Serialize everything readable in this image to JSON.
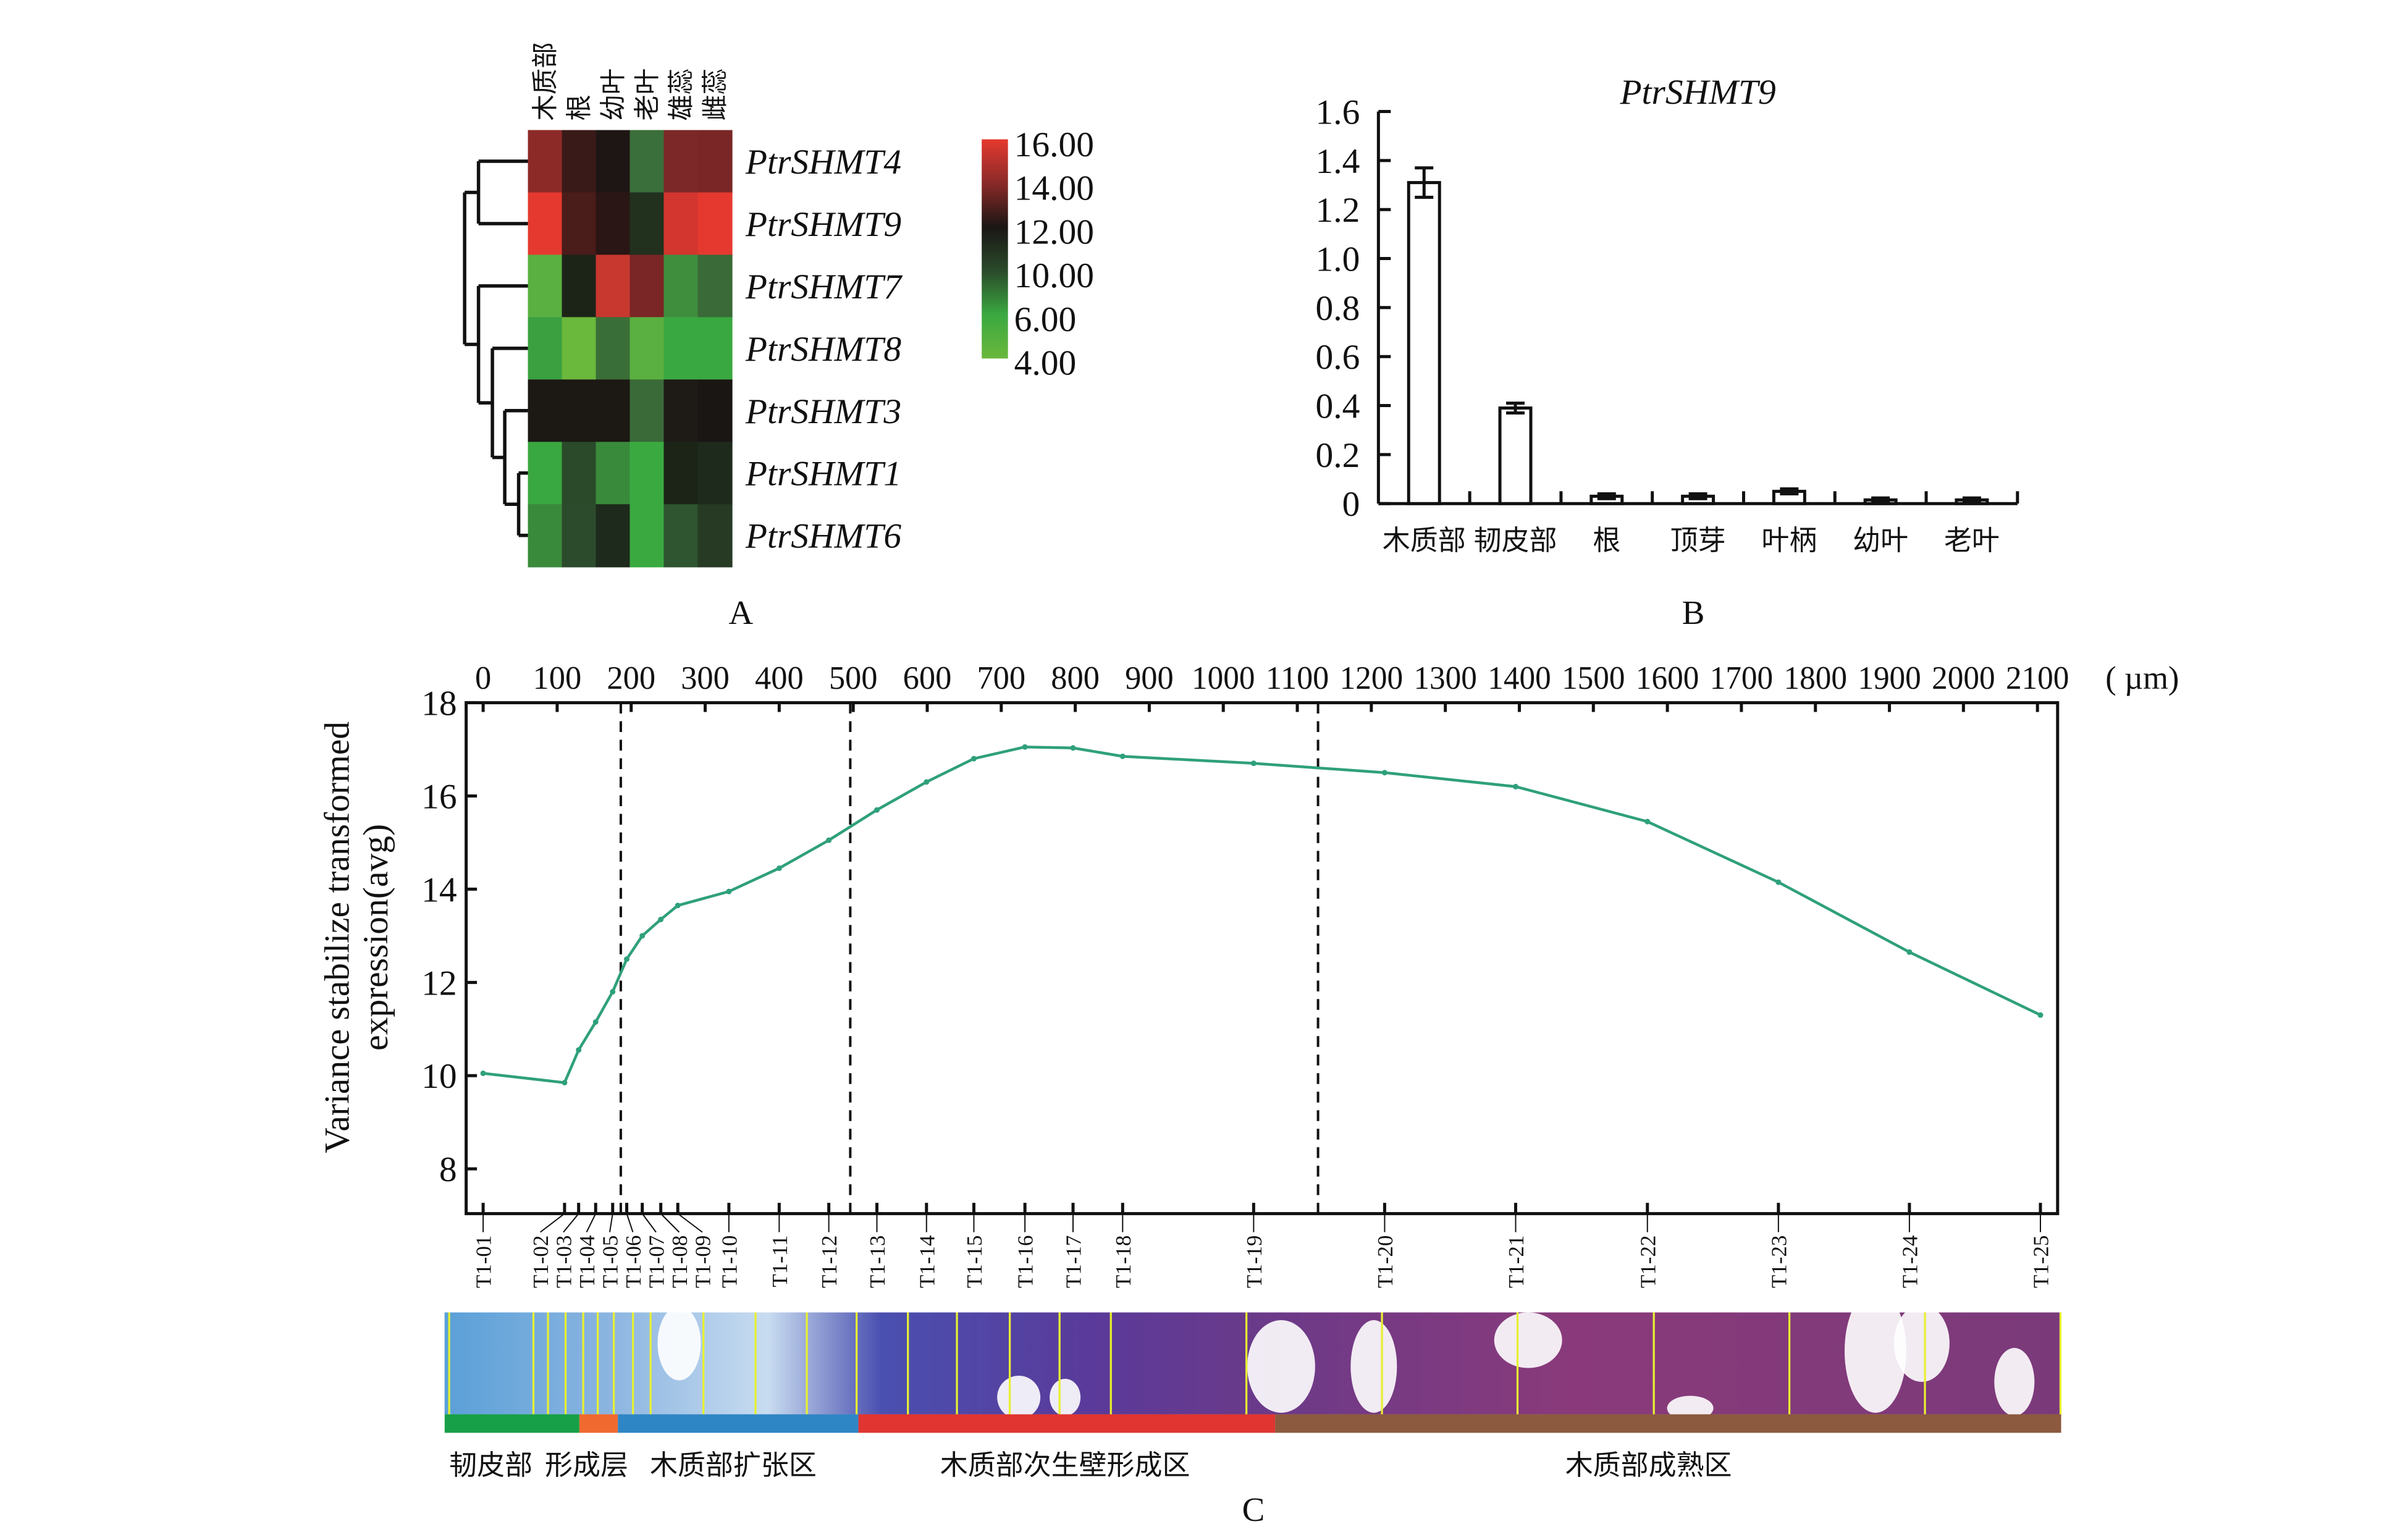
{
  "panel_labels": {
    "a": "A",
    "b": "B",
    "c": "C"
  },
  "chart_data": [
    {
      "type": "heatmap",
      "panel": "A",
      "columns": [
        "木质部",
        "根",
        "幼叶",
        "老叶",
        "雄蕊",
        "雌蕊"
      ],
      "rows": [
        "PtrSHMT4",
        "PtrSHMT9",
        "PtrSHMT7",
        "PtrSHMT8",
        "PtrSHMT3",
        "PtrSHMT1",
        "PtrSHMT6"
      ],
      "row_prefix": "PtrSHMT",
      "row_numbers": [
        "4",
        "9",
        "7",
        "8",
        "3",
        "1",
        "6"
      ],
      "cell_colors": [
        [
          "#8c2a28",
          "#3a1a18",
          "#1e1614",
          "#3a6e3a",
          "#7c2828",
          "#7a2626"
        ],
        [
          "#e5392f",
          "#4a1c1a",
          "#2a1614",
          "#22301e",
          "#d2362e",
          "#e5392f"
        ],
        [
          "#5ab040",
          "#1c2418",
          "#c8382f",
          "#7a2626",
          "#3e8e3e",
          "#3a6a38"
        ],
        [
          "#3aa040",
          "#6ab83c",
          "#3a6e38",
          "#5ab040",
          "#3aa840",
          "#3aa840"
        ],
        [
          "#1c1814",
          "#1c1814",
          "#1c1814",
          "#3a6a38",
          "#1e1a16",
          "#1a1614"
        ],
        [
          "#3aa840",
          "#2a4a2a",
          "#3a8a3c",
          "#3aaa40",
          "#1c2418",
          "#1e2a1c"
        ],
        [
          "#3a8a3c",
          "#2c4a2c",
          "#1e2a1c",
          "#3aaa40",
          "#2e5430",
          "#263a24"
        ]
      ],
      "colorbar": {
        "ticks": [
          "16.00",
          "14.00",
          "12.00",
          "10.00",
          "6.00",
          "4.00"
        ],
        "colors": [
          "#e5392f",
          "#8a2a28",
          "#1a1614",
          "#2a4a2a",
          "#3aa840",
          "#6ab83c"
        ]
      }
    },
    {
      "type": "bar",
      "panel": "B",
      "title": "PtrSHMT9",
      "categories": [
        "木质部",
        "韧皮部",
        "根",
        "顶芽",
        "叶柄",
        "幼叶",
        "老叶"
      ],
      "values": [
        1.31,
        0.39,
        0.03,
        0.03,
        0.05,
        0.015,
        0.015
      ],
      "errors": [
        0.06,
        0.02,
        0.01,
        0.01,
        0.01,
        0.008,
        0.008
      ],
      "ylim": [
        0,
        1.6
      ],
      "yticks": [
        "0",
        "0.2",
        "0.4",
        "0.6",
        "0.8",
        "1.0",
        "1.2",
        "1.4",
        "1.6"
      ]
    },
    {
      "type": "line",
      "panel": "C",
      "ylabel_line1": "Variance stabilize transformed",
      "ylabel_line2": "expression(avg)",
      "ylim": [
        7,
        18
      ],
      "yticks": [
        "8",
        "10",
        "12",
        "14",
        "16",
        "18"
      ],
      "top_axis_ticks": [
        "0",
        "100",
        "200",
        "300",
        "400",
        "500",
        "600",
        "700",
        "800",
        "900",
        "1000",
        "1100",
        "1200",
        "1300",
        "1400",
        "1500",
        "1600",
        "1700",
        "1800",
        "1900",
        "2000",
        "2100"
      ],
      "top_axis_unit": "( µm)",
      "xlim_um": [
        0,
        2100
      ],
      "line_color": "#2fa07c",
      "samples": [
        "T1-01",
        "T1-02",
        "T1-03",
        "T1-04",
        "T1-05",
        "T1-06",
        "T1-07",
        "T1-08",
        "T1-09",
        "T1-10",
        "T1-11",
        "T1-12",
        "T1-13",
        "T1-14",
        "T1-15",
        "T1-16",
        "T1-17",
        "T1-18",
        "T1-19",
        "T1-20",
        "T1-21",
        "T1-22",
        "T1-23",
        "T1-24",
        "T1-25"
      ],
      "x_um": [
        0,
        110,
        129,
        152,
        175,
        194,
        215,
        240,
        263,
        332,
        400,
        467,
        532,
        599,
        663,
        732,
        797,
        864,
        1041,
        1218,
        1395,
        1573,
        1750,
        1927,
        2104
      ],
      "y": [
        10.05,
        9.85,
        10.55,
        11.15,
        11.8,
        12.5,
        13.0,
        13.35,
        13.65,
        13.95,
        14.45,
        15.05,
        15.7,
        16.3,
        16.8,
        17.05,
        17.03,
        16.85,
        16.7,
        16.5,
        16.2,
        15.45,
        14.15,
        12.65,
        11.3
      ],
      "dashed_boundaries_um": [
        186,
        496,
        1128
      ],
      "zones": [
        {
          "label": "韧皮部",
          "color": "#17a047",
          "from_um": -52,
          "to_um": 130
        },
        {
          "label": "形成层",
          "color": "#f06a30",
          "from_um": 130,
          "to_um": 182
        },
        {
          "label": "木质部扩张区",
          "color": "#2f86c4",
          "from_um": 182,
          "to_um": 507
        },
        {
          "label": "木质部次生壁形成区",
          "color": "#e03530",
          "from_um": 507,
          "to_um": 1070
        },
        {
          "label": "木质部成熟区",
          "color": "#8c5a3e",
          "from_um": 1070,
          "to_um": 2132
        }
      ]
    }
  ]
}
